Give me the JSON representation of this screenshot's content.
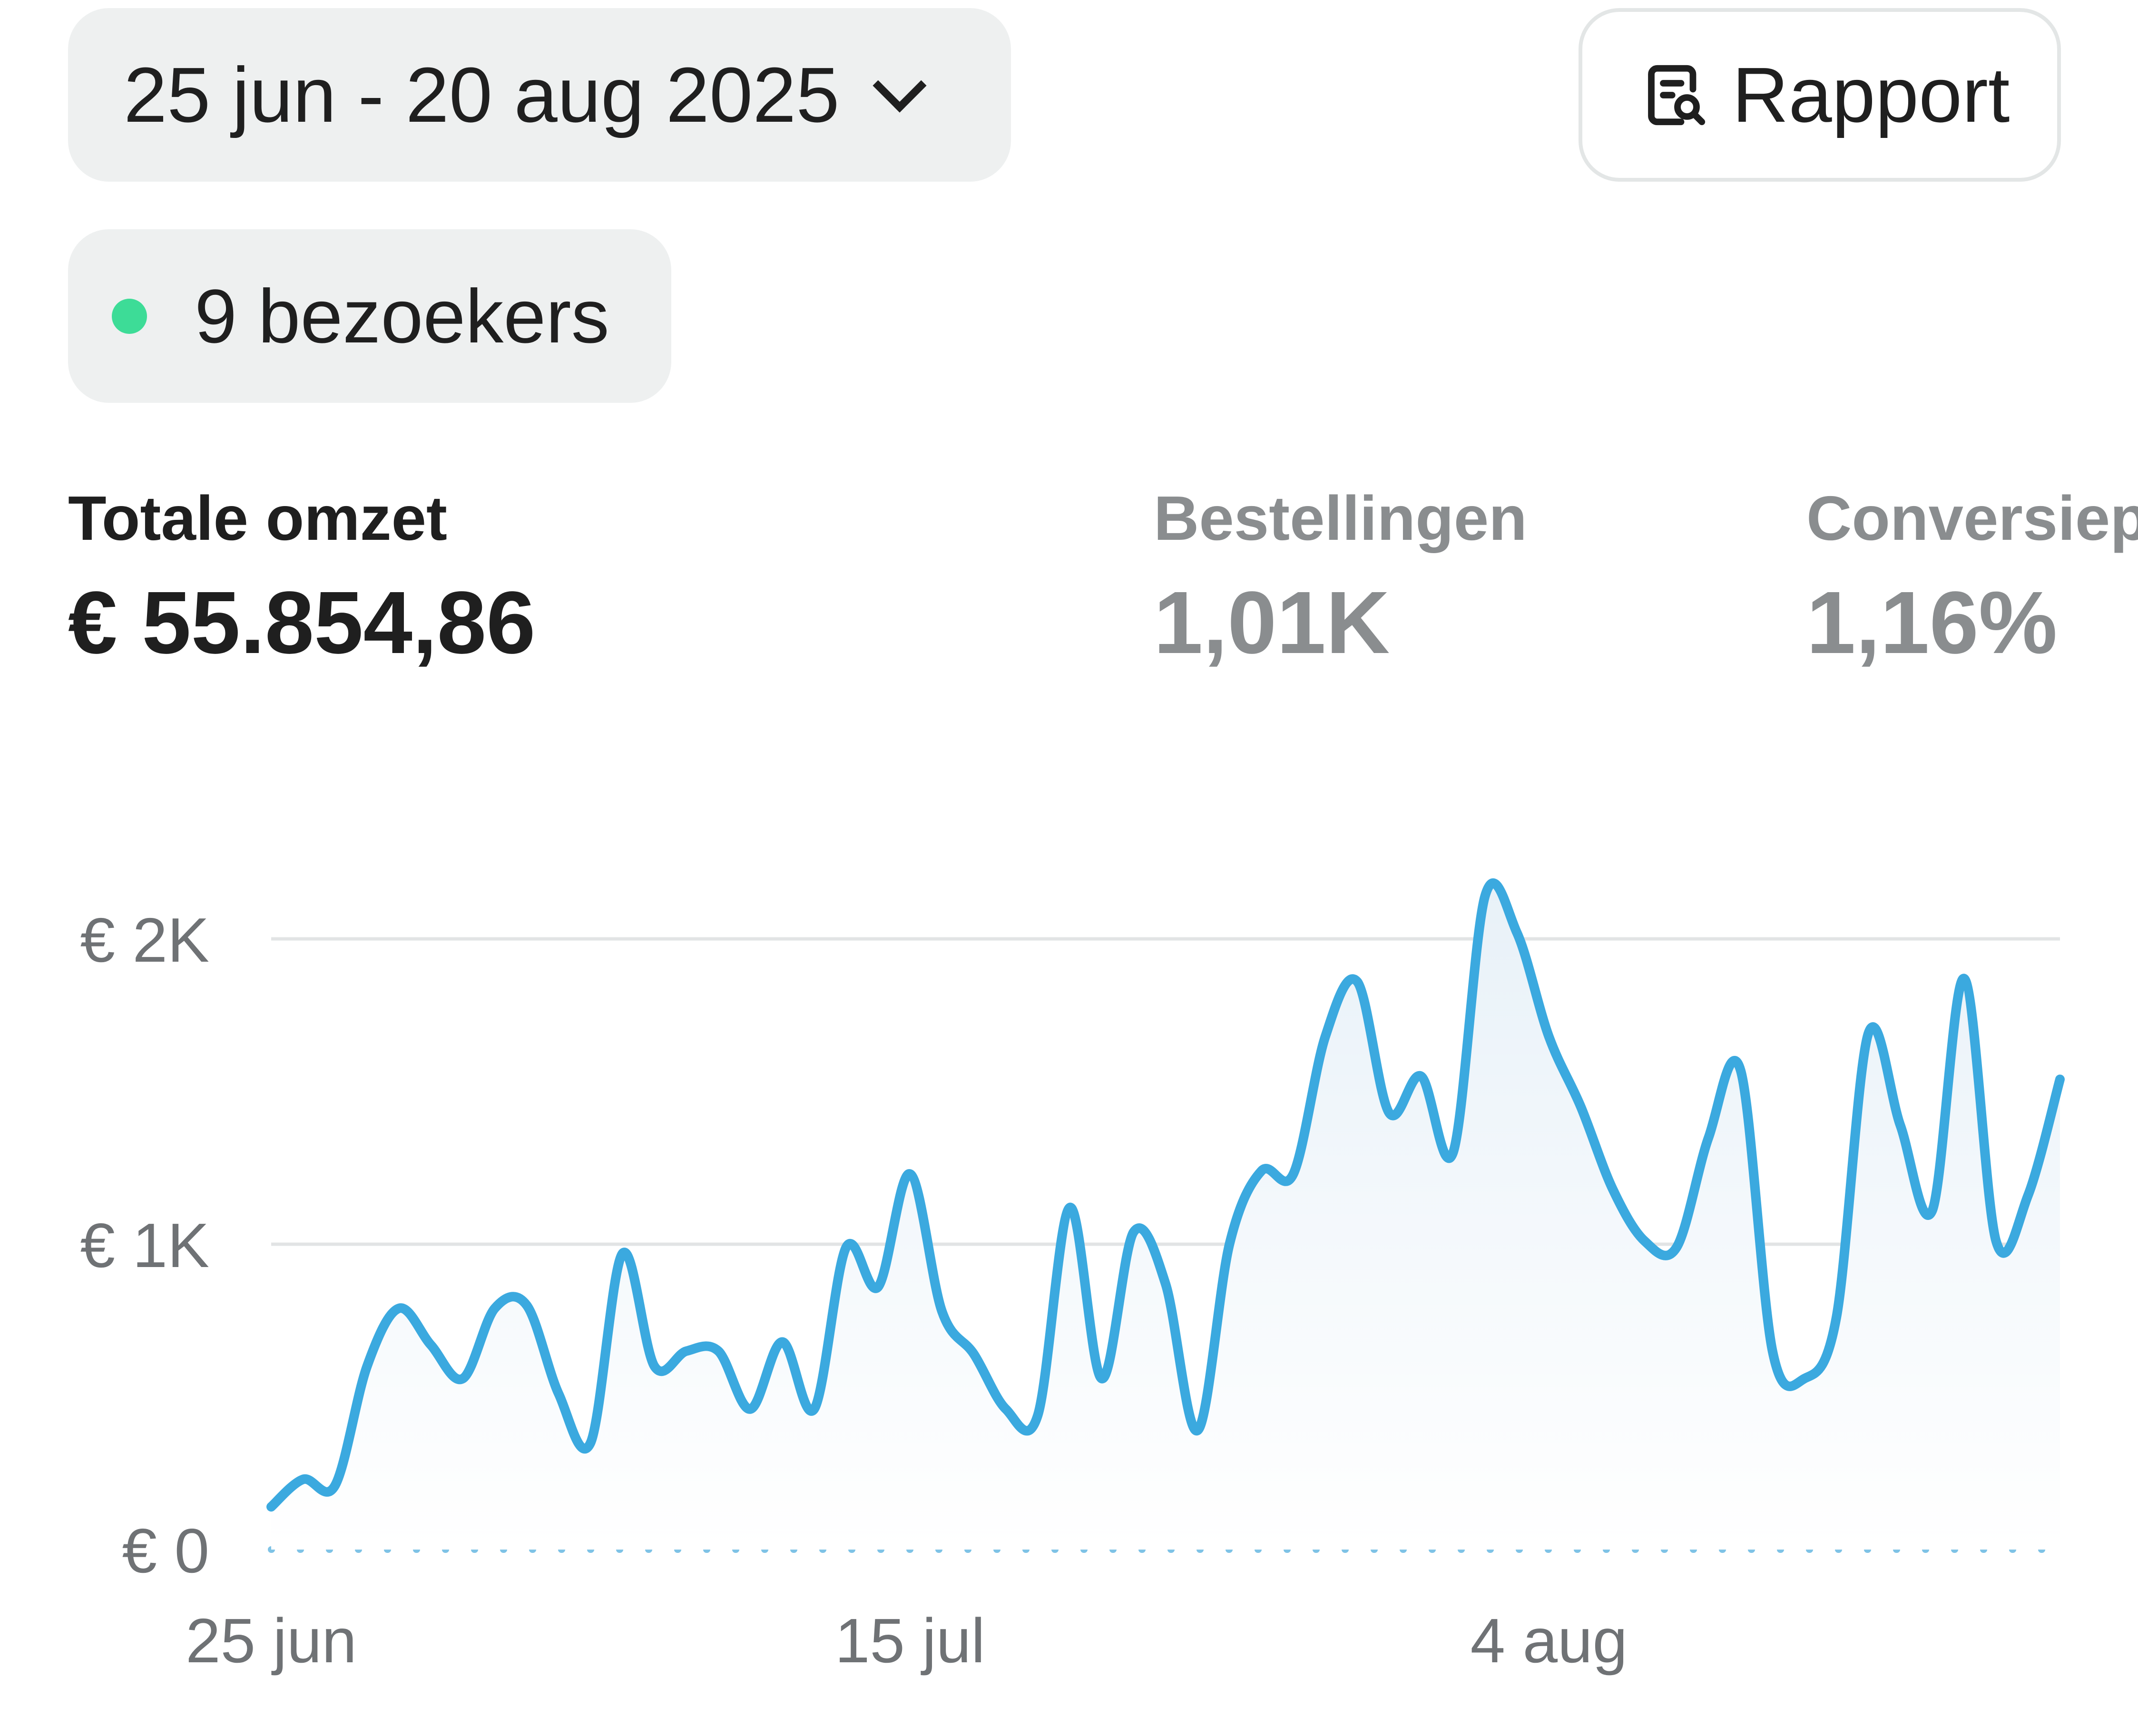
{
  "header": {
    "date_range": "25 jun - 20 aug 2025",
    "report_label": "Rapport"
  },
  "live": {
    "visitors_label": "9 bezoekers",
    "status_color": "#3ddc97"
  },
  "metrics": [
    {
      "label": "Totale omzet",
      "value": "€ 55.854,86",
      "active": true
    },
    {
      "label": "Bestellingen",
      "value": "1,01K",
      "active": false
    },
    {
      "label": "Conversiep",
      "value": "1,16%",
      "active": false
    }
  ],
  "chart_data": {
    "type": "area",
    "line_color": "#3ba9df",
    "y_ticks": [
      {
        "value": 0,
        "label": "€ 0"
      },
      {
        "value": 1000,
        "label": "€ 1K"
      },
      {
        "value": 2000,
        "label": "€ 2K"
      }
    ],
    "ylim": [
      0,
      2000
    ],
    "x_ticks": [
      {
        "index": 0,
        "label": "25 jun"
      },
      {
        "index": 20,
        "label": "15 jul"
      },
      {
        "index": 40,
        "label": "4 aug"
      }
    ],
    "grid": true,
    "values": [
      140,
      230,
      210,
      600,
      790,
      670,
      560,
      790,
      800,
      510,
      350,
      970,
      600,
      650,
      650,
      460,
      680,
      460,
      990,
      860,
      1230,
      780,
      640,
      460,
      440,
      1120,
      560,
      1040,
      870,
      390,
      1000,
      1240,
      1230,
      1680,
      1860,
      1430,
      1550,
      1300,
      2140,
      2020,
      1680,
      1450,
      1180,
      1010,
      990,
      1350,
      1570,
      650,
      560,
      760,
      1690,
      1390,
      1110,
      1870,
      1010,
      1160,
      1540
    ]
  }
}
